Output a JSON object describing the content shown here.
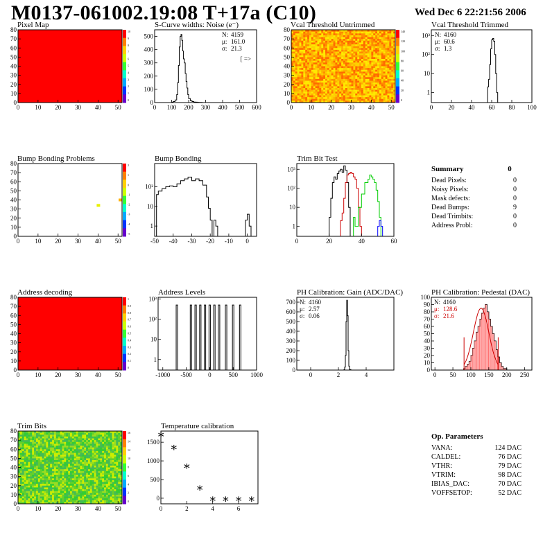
{
  "header": {
    "title": "M0137-061002.19:08 T+17a (C10)",
    "date": "Wed Dec  6 22:21:56 2006"
  },
  "summary": {
    "title": "Summary",
    "value": "0",
    "rows": [
      {
        "label": "Dead Pixels:",
        "value": "0"
      },
      {
        "label": "Noisy Pixels:",
        "value": "0"
      },
      {
        "label": "Mask defects:",
        "value": "0"
      },
      {
        "label": "Dead Bumps:",
        "value": "9"
      },
      {
        "label": "Dead Trimbits:",
        "value": "0"
      },
      {
        "label": "Address Probl:",
        "value": "0"
      }
    ]
  },
  "op_params": {
    "title": "Op. Parameters",
    "rows": [
      {
        "label": "VANA:",
        "value": "124 DAC"
      },
      {
        "label": "CALDEL:",
        "value": "76 DAC"
      },
      {
        "label": "VTHR:",
        "value": "79 DAC"
      },
      {
        "label": "VTRIM:",
        "value": "98 DAC"
      },
      {
        "label": "IBIAS_DAC:",
        "value": "70 DAC"
      },
      {
        "label": "VOFFSETOP:",
        "value": "52 DAC"
      }
    ]
  },
  "chart_data": [
    {
      "id": "pixel-map",
      "type": "heatmap",
      "title": "Pixel Map",
      "xlim": [
        0,
        52
      ],
      "ylim": [
        0,
        80
      ],
      "xticks": [
        0,
        10,
        20,
        30,
        40,
        50
      ],
      "yticks": [
        0,
        10,
        20,
        30,
        40,
        50,
        60,
        70,
        80
      ],
      "fill": "uniform",
      "fill_color": "#ff0000",
      "zlim": [
        0,
        10
      ],
      "zticks": [
        "10",
        "9",
        "8",
        "7",
        "6",
        "5",
        "4",
        "3",
        "2",
        "1",
        "0"
      ],
      "stats": []
    },
    {
      "id": "s-curve-widths",
      "type": "line",
      "title": "S-Curve widths: Noise (e⁻)",
      "xlim": [
        0,
        600
      ],
      "ylim": [
        0,
        550
      ],
      "log_y": false,
      "xticks": [
        0,
        100,
        200,
        300,
        400,
        500,
        600
      ],
      "yticks": [
        0,
        100,
        200,
        300,
        400,
        500
      ],
      "series": [
        {
          "color": "#000000",
          "x": [
            90,
            100,
            110,
            120,
            130,
            135,
            140,
            145,
            150,
            155,
            160,
            165,
            170,
            175,
            180,
            185,
            190,
            195,
            200,
            210,
            220,
            230,
            240,
            250,
            260,
            270,
            280,
            290
          ],
          "y": [
            0,
            3,
            8,
            20,
            60,
            150,
            280,
            420,
            500,
            515,
            470,
            390,
            330,
            300,
            220,
            160,
            110,
            60,
            30,
            14,
            8,
            4,
            3,
            2,
            1,
            1,
            0,
            0
          ]
        }
      ],
      "stats": [
        {
          "label": "N:",
          "value": "4159"
        },
        {
          "label": "μ:",
          "value": "161.0"
        },
        {
          "label": "σ:",
          "value": "21.3"
        }
      ],
      "note": "[ =>"
    },
    {
      "id": "vcal-untrimmed",
      "type": "heatmap",
      "title": "Vcal Threshold Untrimmed",
      "xlim": [
        0,
        52
      ],
      "ylim": [
        0,
        80
      ],
      "xticks": [
        0,
        10,
        20,
        30,
        40,
        50
      ],
      "yticks": [
        0,
        10,
        20,
        30,
        40,
        50,
        60,
        70,
        80
      ],
      "fill": "noise",
      "palette": [
        "#fdd000",
        "#ffe900",
        "#ffb200",
        "#ff8c00",
        "#ff6a00"
      ],
      "zlim": [
        0,
        140
      ],
      "zticks": [
        "140",
        "120",
        "100",
        "80",
        "60",
        "40",
        "20",
        "0"
      ],
      "stats": []
    },
    {
      "id": "vcal-trimmed",
      "type": "line",
      "title": "Vcal Threshold Trimmed",
      "xlim": [
        0,
        100
      ],
      "ylim": [
        0.3,
        2000
      ],
      "log_y": true,
      "xticks": [
        0,
        20,
        40,
        60,
        80,
        100
      ],
      "yticks_log": [
        {
          "v": 1,
          "label": "1"
        },
        {
          "v": 10,
          "label": "10"
        },
        {
          "v": 100,
          "label": "10²"
        },
        {
          "v": 1000,
          "label": "10³"
        }
      ],
      "series": [
        {
          "color": "#000000",
          "x": [
            54,
            56,
            57,
            58,
            59,
            60,
            61,
            62,
            63,
            64,
            65,
            66
          ],
          "y": [
            0.3,
            2,
            5,
            30,
            200,
            600,
            700,
            500,
            100,
            10,
            1,
            0.3
          ]
        }
      ],
      "stats": [
        {
          "label": "N:",
          "value": "4160"
        },
        {
          "label": "μ:",
          "value": "60.6"
        },
        {
          "label": "σ:",
          "value": "1.3"
        }
      ]
    },
    {
      "id": "bump-bonding-problems",
      "type": "heatmap",
      "title": "Bump Bonding Problems",
      "xlim": [
        0,
        52
      ],
      "ylim": [
        0,
        80
      ],
      "xticks": [
        0,
        10,
        20,
        30,
        40,
        50
      ],
      "yticks": [
        0,
        10,
        20,
        30,
        40,
        50,
        60,
        70,
        80
      ],
      "fill": "sparse",
      "points": [
        {
          "x": 40,
          "y": 34,
          "color": "#e8f000"
        },
        {
          "x": 51,
          "y": 40,
          "color": "#ffb000"
        }
      ],
      "zlim": [
        -5,
        2
      ],
      "zticks": [
        "2",
        "1",
        "0",
        "-1",
        "-2",
        "-3",
        "-4",
        "-5"
      ],
      "stats": []
    },
    {
      "id": "bump-bonding",
      "type": "line",
      "title": "Bump Bonding",
      "xlim": [
        -50,
        5
      ],
      "ylim": [
        0.3,
        1500
      ],
      "log_y": true,
      "xticks": [
        -50,
        -40,
        -30,
        -20,
        -10,
        0
      ],
      "yticks_log": [
        {
          "v": 1,
          "label": "1"
        },
        {
          "v": 10,
          "label": "10"
        },
        {
          "v": 100,
          "label": "10²"
        }
      ],
      "series": [
        {
          "color": "#000000",
          "x": [
            -50,
            -49,
            -48,
            -46,
            -44,
            -42,
            -40,
            -38,
            -36,
            -34,
            -32,
            -30,
            -28,
            -26,
            -24,
            -22,
            -21,
            -20,
            -19,
            -18,
            -17,
            -16,
            -15,
            -1,
            0,
            1,
            2
          ],
          "y": [
            0.3,
            40,
            60,
            80,
            100,
            110,
            100,
            140,
            200,
            250,
            300,
            200,
            250,
            200,
            120,
            30,
            8,
            2,
            0.3,
            2,
            1,
            0.3,
            0.3,
            2,
            4,
            1,
            0.3
          ]
        }
      ],
      "stats": []
    },
    {
      "id": "trim-bit-test",
      "type": "line",
      "title": "Trim Bit Test",
      "xlim": [
        0,
        60
      ],
      "ylim": [
        0.3,
        2000
      ],
      "log_y": true,
      "xticks": [
        0,
        20,
        40,
        60
      ],
      "yticks_log": [
        {
          "v": 1,
          "label": "1"
        },
        {
          "v": 10,
          "label": "10"
        },
        {
          "v": 100,
          "label": "10²"
        },
        {
          "v": 1000,
          "label": "10³"
        }
      ],
      "series": [
        {
          "color": "#000000",
          "x": [
            19,
            20,
            21,
            22,
            23,
            24,
            25,
            26,
            27,
            28,
            29,
            30,
            31,
            32,
            33
          ],
          "y": [
            0.3,
            3,
            30,
            200,
            400,
            300,
            600,
            800,
            1000,
            700,
            1500,
            900,
            200,
            10,
            0.3
          ]
        },
        {
          "color": "#cc0000",
          "x": [
            26,
            27,
            28,
            29,
            30,
            31,
            32,
            33,
            34,
            35,
            36,
            37,
            38,
            39,
            40
          ],
          "y": [
            0.3,
            2,
            5,
            30,
            200,
            500,
            600,
            700,
            600,
            400,
            300,
            100,
            10,
            1,
            0.3
          ]
        },
        {
          "color": "#00cc00",
          "x": [
            34,
            35,
            36,
            38,
            40,
            42,
            44,
            45,
            46,
            47,
            48,
            49,
            50,
            51,
            52
          ],
          "y": [
            0.3,
            3,
            1,
            10,
            50,
            200,
            300,
            500,
            400,
            300,
            200,
            80,
            20,
            3,
            0.3
          ]
        },
        {
          "color": "#0000ff",
          "x": [
            49,
            50,
            51,
            52,
            53
          ],
          "y": [
            0.3,
            1,
            2,
            1,
            0.3
          ]
        }
      ],
      "stats": []
    },
    {
      "id": "address-decoding",
      "type": "heatmap",
      "title": "Address decoding",
      "xlim": [
        0,
        52
      ],
      "ylim": [
        0,
        80
      ],
      "xticks": [
        0,
        10,
        20,
        30,
        40,
        50
      ],
      "yticks": [
        0,
        10,
        20,
        30,
        40,
        50,
        60,
        70,
        80
      ],
      "fill": "uniform",
      "fill_color": "#ff0000",
      "zlim": [
        0,
        1
      ],
      "zticks": [
        "1",
        "0.9",
        "0.8",
        "0.7",
        "0.6",
        "0.5",
        "0.4",
        "0.3",
        "0.2",
        "0.1",
        "0"
      ],
      "stats": []
    },
    {
      "id": "address-levels",
      "type": "line",
      "title": "Address Levels",
      "xlim": [
        -1100,
        1000
      ],
      "ylim": [
        0.3,
        1200
      ],
      "log_y": true,
      "xticks": [
        -1000,
        -500,
        0,
        500,
        1000
      ],
      "yticks_log": [
        {
          "v": 1,
          "label": "1"
        },
        {
          "v": 10,
          "label": "10"
        },
        {
          "v": 100,
          "label": "10²"
        },
        {
          "v": 1000,
          "label": "10³"
        }
      ],
      "peaks": [
        -700,
        -400,
        -300,
        -200,
        -100,
        0,
        100,
        200,
        350,
        500,
        650
      ],
      "peak_height": 500,
      "stats": []
    },
    {
      "id": "ph-calibration-gain",
      "type": "line",
      "title": "PH Calibration: Gain (ADC/DAC)",
      "xlim": [
        -1,
        6
      ],
      "ylim": [
        0,
        750
      ],
      "log_y": false,
      "xticks": [
        0,
        2,
        4
      ],
      "yticks": [
        0,
        100,
        200,
        300,
        400,
        500,
        600,
        700
      ],
      "series": [
        {
          "color": "#000000",
          "x": [
            2.3,
            2.4,
            2.45,
            2.5,
            2.55,
            2.6,
            2.65,
            2.7,
            2.75,
            2.8,
            2.9
          ],
          "y": [
            0,
            5,
            30,
            150,
            500,
            720,
            560,
            200,
            40,
            5,
            0
          ]
        }
      ],
      "stats": [
        {
          "label": "N:",
          "value": "4160"
        },
        {
          "label": "μ:",
          "value": "2.57"
        },
        {
          "label": "σ:",
          "value": "0.06"
        }
      ]
    },
    {
      "id": "ph-calibration-pedestal",
      "type": "line",
      "title": "PH Calibration: Pedestal (DAC)",
      "xlim": [
        -10,
        270
      ],
      "ylim": [
        0,
        100
      ],
      "log_y": false,
      "xticks": [
        0,
        50,
        100,
        150,
        200,
        250
      ],
      "yticks": [
        0,
        10,
        20,
        30,
        40,
        50,
        60,
        70,
        80,
        90,
        100
      ],
      "series": [
        {
          "color": "#000000",
          "x": [
            70,
            80,
            85,
            90,
            95,
            100,
            105,
            110,
            115,
            120,
            125,
            130,
            135,
            140,
            145,
            150,
            155,
            160,
            165,
            170,
            175,
            180,
            185,
            190,
            200
          ],
          "y": [
            0,
            2,
            5,
            8,
            12,
            20,
            30,
            40,
            52,
            60,
            70,
            78,
            85,
            90,
            80,
            70,
            60,
            50,
            40,
            28,
            18,
            10,
            5,
            2,
            0
          ]
        }
      ],
      "fit": {
        "color": "#cc0000",
        "mean": 128.6,
        "sigma": 21.6,
        "peak": 85
      },
      "stats": [
        {
          "label": "N:",
          "value": "4160"
        },
        {
          "label": "μ:",
          "value": "128.6"
        },
        {
          "label": "σ:",
          "value": "21.6"
        }
      ]
    },
    {
      "id": "trim-bits",
      "type": "heatmap",
      "title": "Trim Bits",
      "xlim": [
        0,
        52
      ],
      "ylim": [
        0,
        80
      ],
      "xticks": [
        0,
        10,
        20,
        30,
        40,
        50
      ],
      "yticks": [
        0,
        10,
        20,
        30,
        40,
        50,
        60,
        70,
        80
      ],
      "fill": "noise",
      "palette": [
        "#33cc33",
        "#66d02a",
        "#99dd22",
        "#ccee00",
        "#44bb55"
      ],
      "zlim": [
        0,
        16
      ],
      "zticks": [
        "16",
        "14",
        "12",
        "10",
        "8",
        "6",
        "4",
        "2",
        "0"
      ],
      "stats": []
    },
    {
      "id": "temperature-calibration",
      "type": "scatter",
      "title": "Temperature calibration",
      "xlim": [
        0,
        7.5
      ],
      "ylim": [
        -150,
        1800
      ],
      "log_y": false,
      "xticks": [
        0,
        2,
        4,
        6
      ],
      "yticks": [
        0,
        500,
        1000,
        1500
      ],
      "series": [
        {
          "color": "#000000",
          "marker": "star",
          "x": [
            0,
            1,
            2,
            3,
            4,
            5,
            6,
            7
          ],
          "y": [
            1700,
            1350,
            850,
            270,
            -30,
            -30,
            -30,
            -30
          ]
        }
      ],
      "stats": []
    }
  ]
}
